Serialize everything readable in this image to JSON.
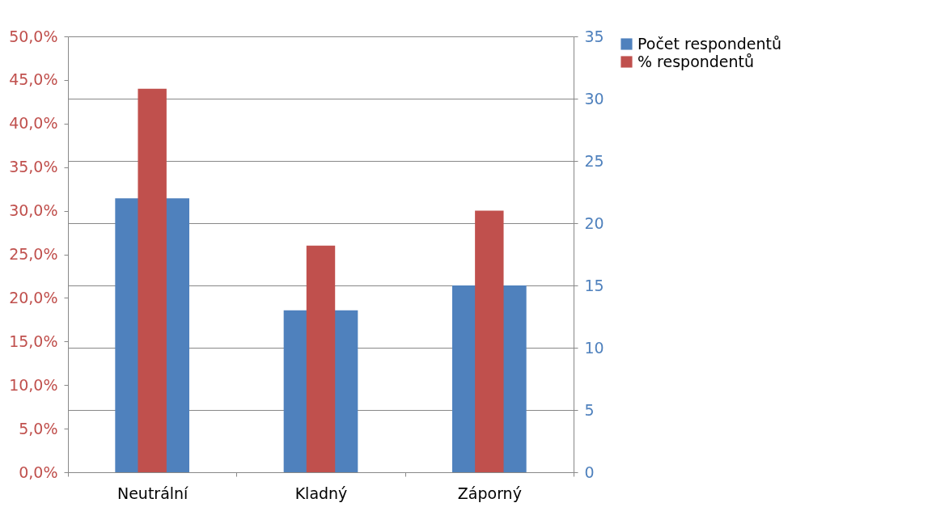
{
  "chart_data": {
    "type": "bar",
    "categories": [
      "Neutrální",
      "Kladný",
      "Záporný"
    ],
    "series": [
      {
        "name": "Počet respondentů",
        "color": "#4f81bd",
        "values": [
          22,
          13,
          15
        ],
        "axis": "y2"
      },
      {
        "name": "% respondentů",
        "color": "#c0504d",
        "values": [
          44,
          26,
          30
        ]
      }
    ],
    "ylim": [
      0,
      50
    ],
    "yticks": [
      {
        "value": 0,
        "label": "0,0%"
      },
      {
        "value": 5,
        "label": "5,0%"
      },
      {
        "value": 10,
        "label": "10,0%"
      },
      {
        "value": 15,
        "label": "15,0%"
      },
      {
        "value": 20,
        "label": "20,0%"
      },
      {
        "value": 25,
        "label": "25,0%"
      },
      {
        "value": 30,
        "label": "30,0%"
      },
      {
        "value": 35,
        "label": "35,0%"
      },
      {
        "value": 40,
        "label": "40,0%"
      },
      {
        "value": 45,
        "label": "45,0%"
      },
      {
        "value": 50,
        "label": "50,0%"
      }
    ],
    "y2lim": [
      0,
      35
    ],
    "y2ticks": [
      0,
      5,
      10,
      15,
      20,
      25,
      30,
      35
    ],
    "grid": true,
    "legend": "right"
  }
}
